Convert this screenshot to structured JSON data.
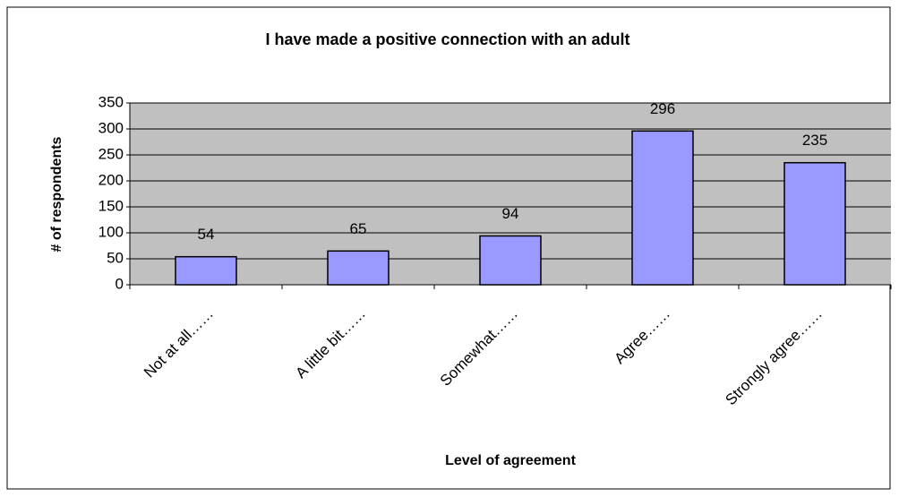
{
  "chart_data": {
    "type": "bar",
    "title": "I have made a positive connection with an adult",
    "x_label": "Level of agreement",
    "y_label": "# of respondents",
    "categories": [
      "Not at all……",
      "A little bit……",
      "Somewhat……",
      "Agree……",
      "Strongly agree……"
    ],
    "values": [
      54,
      65,
      94,
      296,
      235
    ],
    "color": "#9999ff",
    "ylim": [
      0,
      350
    ],
    "yticks": [
      0,
      50,
      100,
      150,
      200,
      250,
      300,
      350
    ],
    "grid": true
  }
}
